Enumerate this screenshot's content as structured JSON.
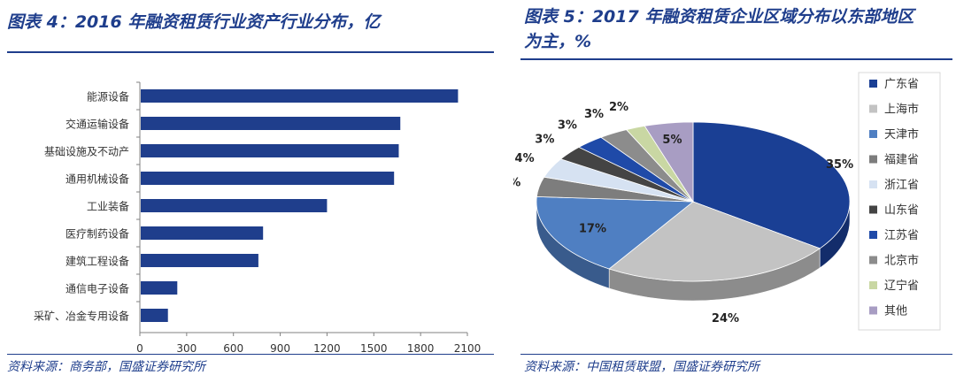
{
  "left": {
    "title": "图表 4：2016 年融资租赁行业资产行业分布，亿",
    "source": "资料来源：商务部，国盛证券研究所"
  },
  "right": {
    "title_line1": "图表 5：2017 年融资租赁企业区域分布以东部地区",
    "title_line2": "为主，%",
    "source": "资料来源：中国租赁联盟，国盛证券研究所"
  },
  "chart_data": [
    {
      "type": "bar",
      "orientation": "horizontal",
      "categories": [
        "能源设备",
        "交通运输设备",
        "基础设施及不动产",
        "通用机械设备",
        "工业装备",
        "医疗制药设备",
        "建筑工程设备",
        "通信电子设备",
        "采矿、冶金专用设备"
      ],
      "values": [
        2040,
        1670,
        1660,
        1630,
        1200,
        790,
        760,
        240,
        180
      ],
      "xlim": [
        0,
        2100
      ],
      "xticks": [
        0,
        300,
        600,
        900,
        1200,
        1500,
        1800,
        2100
      ],
      "color": "#1f3e8c",
      "grid": false
    },
    {
      "type": "pie",
      "style": "3d",
      "categories": [
        "广东省",
        "上海市",
        "天津市",
        "福建省",
        "浙江省",
        "山东省",
        "江苏省",
        "北京市",
        "辽宁省",
        "其他"
      ],
      "values": [
        35,
        24,
        17,
        4,
        4,
        3,
        3,
        3,
        2,
        5
      ],
      "labels": [
        "35%",
        "24%",
        "17%",
        "4%",
        "4%",
        "3%",
        "3%",
        "3%",
        "2%",
        "5%"
      ],
      "colors": [
        "#1a3f94",
        "#c3c3c3",
        "#4f7fc2",
        "#7d7d7d",
        "#d6e2f2",
        "#444444",
        "#1f4aa8",
        "#8c8c8c",
        "#c9d7a3",
        "#a89dc3"
      ],
      "legend": "right"
    }
  ]
}
